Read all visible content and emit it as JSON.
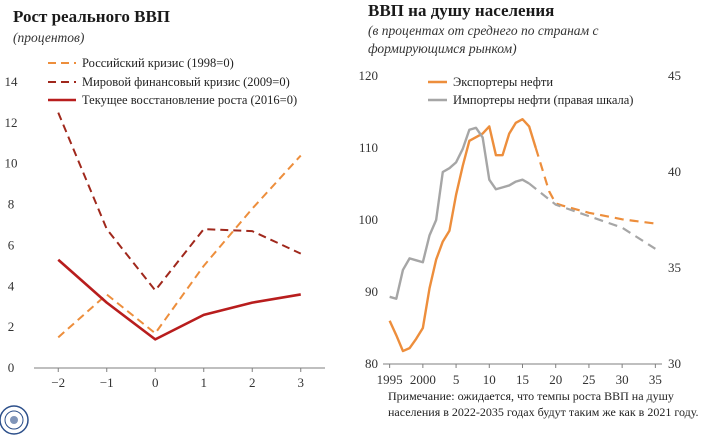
{
  "colors": {
    "orange": "#ED8E3C",
    "gray": "#A6A6A6",
    "dark_red": "#A0281C",
    "bright_red": "#B81D1D",
    "axis": "#7f7f7f"
  },
  "logo": {
    "name": "imf-seal"
  },
  "chart_data": [
    {
      "type": "line",
      "title": "Рост реального ВВП",
      "subtitle": "(процентов)",
      "x": [
        -2,
        -1,
        0,
        1,
        2,
        3
      ],
      "x_tick_labels": [
        "−2",
        "−1",
        "0",
        "1",
        "2",
        "3"
      ],
      "y_ticks": [
        "0",
        "2",
        "4",
        "6",
        "8",
        "10",
        "12",
        "14"
      ],
      "ylim": [
        0,
        14
      ],
      "legend_position": "top-right",
      "series": [
        {
          "name": "Российский кризис (1998=0)",
          "style": "dashed",
          "color": "#ED8E3C",
          "values": [
            1.5,
            3.6,
            1.7,
            5.0,
            7.8,
            10.4
          ]
        },
        {
          "name": "Мировой финансовый кризис (2009=0)",
          "style": "dashed",
          "color": "#A0281C",
          "values": [
            12.5,
            6.8,
            3.8,
            6.8,
            6.7,
            5.6
          ]
        },
        {
          "name": "Текущее восстановление роста (2016=0)",
          "style": "solid",
          "color": "#B81D1D",
          "values": [
            5.3,
            3.2,
            1.4,
            2.6,
            3.2,
            3.6
          ]
        }
      ]
    },
    {
      "type": "line",
      "title": "ВВП на душу населения",
      "subtitle_lines": [
        "(в процентах от среднего по странам с",
        "формирующимся рынком)"
      ],
      "x_tick_labels": [
        "1995",
        "2000",
        "5",
        "10",
        "15",
        "20",
        "25",
        "30",
        "35"
      ],
      "x_tick_years": [
        1995,
        2000,
        2005,
        2010,
        2015,
        2020,
        2025,
        2030,
        2035
      ],
      "left_y_ticks": [
        "80",
        "90",
        "100",
        "110",
        "120"
      ],
      "left_ylim": [
        80,
        120
      ],
      "right_y_ticks": [
        "30",
        "35",
        "40",
        "45"
      ],
      "right_ylim": [
        30,
        45
      ],
      "legend_position": "top-left",
      "series": [
        {
          "name": "Экспортеры нефти",
          "axis": "left",
          "color": "#ED8E3C",
          "x": [
            1995,
            1996,
            1997,
            1998,
            1999,
            2000,
            2001,
            2002,
            2003,
            2004,
            2005,
            2006,
            2007,
            2008,
            2009,
            2010,
            2011,
            2012,
            2013,
            2014,
            2015,
            2016,
            2017,
            2018,
            2019,
            2020,
            2021,
            2025,
            2030,
            2035
          ],
          "values": [
            86,
            84,
            81.8,
            82.2,
            83.5,
            85,
            90.5,
            94.5,
            97,
            98.5,
            103.5,
            107.5,
            111,
            111.5,
            112,
            113,
            109,
            109,
            112,
            113.5,
            114,
            113,
            110,
            107,
            104,
            102.3,
            102,
            101,
            100.1,
            99.5
          ],
          "dashed_from_index": 22
        },
        {
          "name": "Импортеры нефти (правая шкала)",
          "axis": "right",
          "color": "#A6A6A6",
          "x": [
            1995,
            1996,
            1997,
            1998,
            1999,
            2000,
            2001,
            2002,
            2003,
            2004,
            2005,
            2006,
            2007,
            2008,
            2009,
            2010,
            2011,
            2012,
            2013,
            2014,
            2015,
            2016,
            2020,
            2025,
            2030,
            2035
          ],
          "values": [
            33.5,
            33.4,
            34.9,
            35.5,
            35.4,
            35.3,
            36.7,
            37.5,
            40.0,
            40.2,
            40.5,
            41.2,
            42.2,
            42.3,
            41.8,
            39.6,
            39.1,
            39.2,
            39.3,
            39.5,
            39.6,
            39.4,
            38.3,
            37.7,
            37.1,
            36.0
          ],
          "dashed_from_index": 21
        }
      ],
      "note_lines": [
        "Примечание: ожидается, что темпы роста ВВП на душу",
        "населения в 2022-2035 годах будут таким же как в 2021 году."
      ]
    }
  ]
}
